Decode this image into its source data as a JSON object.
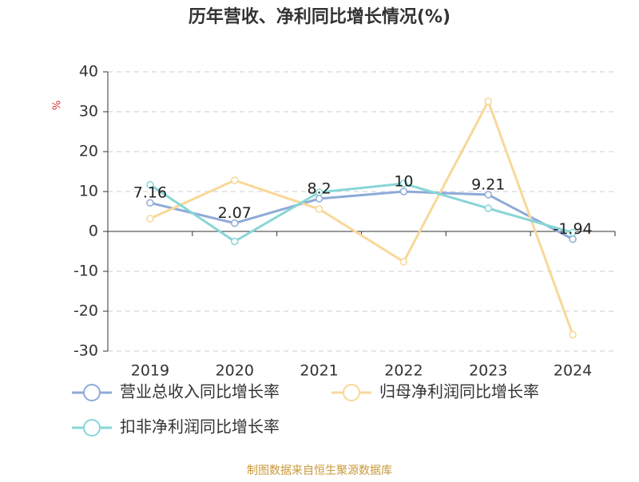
{
  "chart_data": {
    "type": "line",
    "title": "历年营收、净利同比增长情况(%)",
    "y_label": "%",
    "categories": [
      "2019",
      "2020",
      "2021",
      "2022",
      "2023",
      "2024"
    ],
    "series": [
      {
        "name": "营业总收入同比增长率",
        "color": "#8eaad8",
        "values": [
          7.16,
          2.07,
          8.2,
          10,
          9.21,
          -1.94
        ],
        "show_labels": true
      },
      {
        "name": "归母净利润同比增长率",
        "color": "#f8d898",
        "values": [
          3.2,
          12.8,
          5.6,
          -7.6,
          32.6,
          -25.9
        ],
        "show_labels": false
      },
      {
        "name": "扣非净利润同比增长率",
        "color": "#88d6d6",
        "values": [
          11.7,
          -2.5,
          9.8,
          12.0,
          5.8,
          -0.3
        ],
        "show_labels": false
      }
    ],
    "ylim": [
      -30,
      40
    ],
    "yticks": [
      -30,
      -20,
      -10,
      0,
      10,
      20,
      30,
      40
    ],
    "grid": true,
    "source": "制图数据来自恒生聚源数据库"
  }
}
